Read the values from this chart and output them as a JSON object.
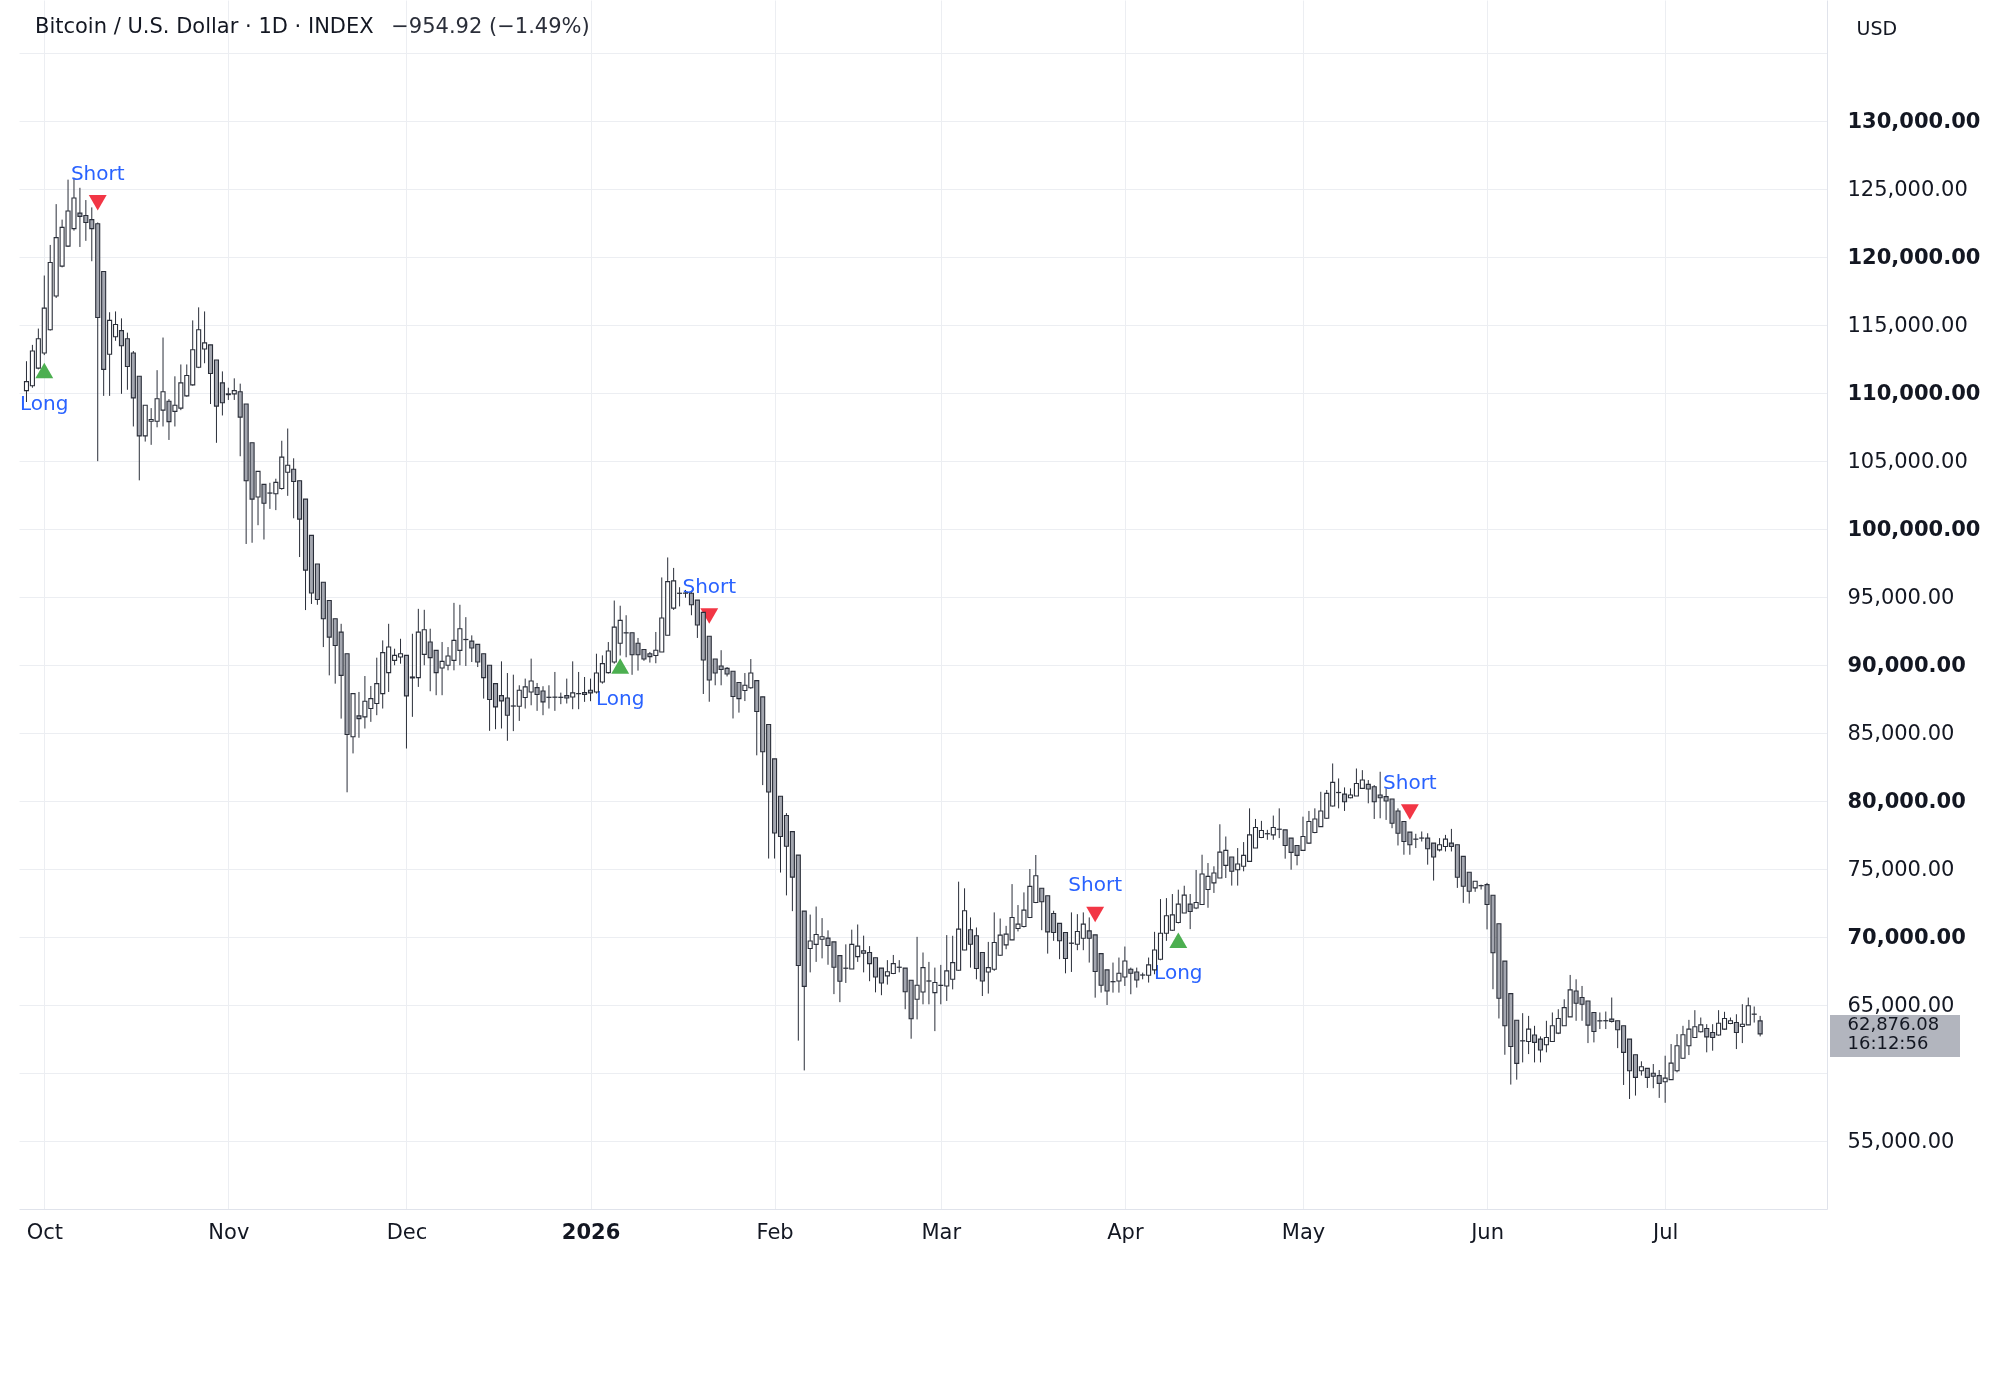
{
  "chart_data": {
    "type": "candlestick",
    "title": "Bitcoin / U.S. Dollar · 1D · INDEX",
    "subtitle": "−954.92 (−1.49%)",
    "ylabel": "USD",
    "color": "#2a2e39",
    "x": [
      "2025-09-28",
      "2025-09-29",
      "2025-09-30",
      "2025-10-01",
      "2025-10-02",
      "2025-10-03",
      "2025-10-04",
      "2025-10-05",
      "2025-10-06",
      "2025-10-07",
      "2025-10-08",
      "2025-10-09",
      "2025-10-10",
      "2025-10-11",
      "2025-10-12",
      "2025-10-13",
      "2025-10-14",
      "2025-10-15",
      "2025-10-16",
      "2025-10-17",
      "2025-10-18",
      "2025-10-19",
      "2025-10-20",
      "2025-10-21",
      "2025-10-22",
      "2025-10-23",
      "2025-10-24",
      "2025-10-25",
      "2025-10-26",
      "2025-10-27",
      "2025-10-28",
      "2025-10-29",
      "2025-10-30",
      "2025-10-31",
      "2025-11-01",
      "2025-11-02",
      "2025-11-03",
      "2025-11-04",
      "2025-11-05",
      "2025-11-06",
      "2025-11-07",
      "2025-11-08",
      "2025-11-09",
      "2025-11-10",
      "2025-11-11",
      "2025-11-12",
      "2025-11-13",
      "2025-11-14",
      "2025-11-15",
      "2025-11-16",
      "2025-11-17",
      "2025-11-18",
      "2025-11-19",
      "2025-11-20",
      "2025-11-21",
      "2025-11-22",
      "2025-11-23",
      "2025-11-24",
      "2025-11-25",
      "2025-11-26",
      "2025-11-27",
      "2025-11-28",
      "2025-11-29",
      "2025-11-30",
      "2025-12-01",
      "2025-12-02",
      "2025-12-03",
      "2025-12-04",
      "2025-12-05",
      "2025-12-06",
      "2025-12-07",
      "2025-12-08",
      "2025-12-09",
      "2025-12-10",
      "2025-12-11",
      "2025-12-12",
      "2025-12-13",
      "2025-12-14",
      "2025-12-15",
      "2025-12-16",
      "2025-12-17",
      "2025-12-18",
      "2025-12-19",
      "2025-12-20",
      "2025-12-21",
      "2025-12-22",
      "2025-12-23",
      "2025-12-24",
      "2025-12-25",
      "2025-12-26",
      "2025-12-27",
      "2025-12-28",
      "2025-12-29",
      "2025-12-30",
      "2025-12-31",
      "2026-01-01",
      "2026-01-02",
      "2026-01-03",
      "2026-01-04",
      "2026-01-05",
      "2026-01-06",
      "2026-01-07",
      "2026-01-08",
      "2026-01-09",
      "2026-01-10",
      "2026-01-11",
      "2026-01-12",
      "2026-01-13",
      "2026-01-14",
      "2026-01-15",
      "2026-01-16",
      "2026-01-17",
      "2026-01-18",
      "2026-01-19",
      "2026-01-20",
      "2026-01-21",
      "2026-01-22",
      "2026-01-23",
      "2026-01-24",
      "2026-01-25",
      "2026-01-26",
      "2026-01-27",
      "2026-01-28",
      "2026-01-29",
      "2026-01-30",
      "2026-01-31",
      "2026-02-01",
      "2026-02-02",
      "2026-02-03",
      "2026-02-04",
      "2026-02-05",
      "2026-02-06",
      "2026-02-07",
      "2026-02-08",
      "2026-02-09",
      "2026-02-10",
      "2026-02-11",
      "2026-02-12",
      "2026-02-13",
      "2026-02-14",
      "2026-02-15",
      "2026-02-16",
      "2026-02-17",
      "2026-02-18",
      "2026-02-19",
      "2026-02-20",
      "2026-02-21",
      "2026-02-22",
      "2026-02-23",
      "2026-02-24",
      "2026-02-25",
      "2026-02-26",
      "2026-02-27",
      "2026-02-28",
      "2026-03-01",
      "2026-03-02",
      "2026-03-03",
      "2026-03-04",
      "2026-03-05",
      "2026-03-06",
      "2026-03-07",
      "2026-03-08",
      "2026-03-09",
      "2026-03-10",
      "2026-03-11",
      "2026-03-12",
      "2026-03-13",
      "2026-03-14",
      "2026-03-15",
      "2026-03-16",
      "2026-03-17",
      "2026-03-18",
      "2026-03-19",
      "2026-03-20",
      "2026-03-21",
      "2026-03-22",
      "2026-03-23",
      "2026-03-24",
      "2026-03-25",
      "2026-03-26",
      "2026-03-27",
      "2026-03-28",
      "2026-03-29",
      "2026-03-30",
      "2026-03-31",
      "2026-04-01",
      "2026-04-02",
      "2026-04-03",
      "2026-04-04",
      "2026-04-05",
      "2026-04-06",
      "2026-04-07",
      "2026-04-08",
      "2026-04-09",
      "2026-04-10",
      "2026-04-11",
      "2026-04-12",
      "2026-04-13",
      "2026-04-14",
      "2026-04-15",
      "2026-04-16",
      "2026-04-17",
      "2026-04-18",
      "2026-04-19",
      "2026-04-20",
      "2026-04-21",
      "2026-04-22",
      "2026-04-23",
      "2026-04-24",
      "2026-04-25",
      "2026-04-26",
      "2026-04-27",
      "2026-04-28",
      "2026-04-29",
      "2026-04-30",
      "2026-05-01",
      "2026-05-02",
      "2026-05-03",
      "2026-05-04",
      "2026-05-05",
      "2026-05-06",
      "2026-05-07",
      "2026-05-08",
      "2026-05-09",
      "2026-05-10",
      "2026-05-11",
      "2026-05-12",
      "2026-05-13",
      "2026-05-14",
      "2026-05-15",
      "2026-05-16",
      "2026-05-17",
      "2026-05-18",
      "2026-05-19",
      "2026-05-20",
      "2026-05-21",
      "2026-05-22",
      "2026-05-23",
      "2026-05-24",
      "2026-05-25",
      "2026-05-26",
      "2026-05-27",
      "2026-05-28",
      "2026-05-29",
      "2026-05-30",
      "2026-05-31",
      "2026-06-01",
      "2026-06-02",
      "2026-06-03",
      "2026-06-04",
      "2026-06-05",
      "2026-06-06",
      "2026-06-07",
      "2026-06-08",
      "2026-06-09",
      "2026-06-10",
      "2026-06-11",
      "2026-06-12",
      "2026-06-13",
      "2026-06-14",
      "2026-06-15",
      "2026-06-16",
      "2026-06-17",
      "2026-06-18",
      "2026-06-19",
      "2026-06-20",
      "2026-06-21",
      "2026-06-22",
      "2026-06-23",
      "2026-06-24",
      "2026-06-25",
      "2026-06-26",
      "2026-06-27",
      "2026-06-28",
      "2026-06-29",
      "2026-06-30",
      "2026-07-01",
      "2026-07-02",
      "2026-07-03",
      "2026-07-04",
      "2026-07-05",
      "2026-07-06",
      "2026-07-07",
      "2026-07-08",
      "2026-07-09",
      "2026-07-10",
      "2026-07-11",
      "2026-07-12",
      "2026-07-13",
      "2026-07-14",
      "2026-07-15",
      "2026-07-16",
      "2026-07-17"
    ],
    "ohlc": [
      [
        110180,
        112340,
        109340,
        110840
      ],
      [
        110540,
        113540,
        110390,
        113090
      ],
      [
        111830,
        114740,
        111740,
        113990
      ],
      [
        112940,
        118640,
        112790,
        116240
      ],
      [
        114650,
        120890,
        114590,
        119600
      ],
      [
        117140,
        123890,
        116990,
        121430
      ],
      [
        119330,
        122750,
        119240,
        122180
      ],
      [
        120800,
        125690,
        120740,
        123380
      ],
      [
        122090,
        125840,
        121940,
        124340
      ],
      [
        123230,
        125090,
        120740,
        122990
      ],
      [
        123050,
        124190,
        121190,
        122540
      ],
      [
        122750,
        123650,
        119690,
        122090
      ],
      [
        122450,
        122540,
        104990,
        115550
      ],
      [
        118940,
        118940,
        109790,
        111740
      ],
      [
        112850,
        115940,
        109790,
        115340
      ],
      [
        114140,
        116000,
        113840,
        115040
      ],
      [
        114590,
        115490,
        109940,
        113480
      ],
      [
        113990,
        114440,
        110240,
        111950
      ],
      [
        112940,
        113090,
        107540,
        109640
      ],
      [
        111230,
        111230,
        103580,
        106850
      ],
      [
        106850,
        109100,
        106430,
        109100
      ],
      [
        107930,
        108890,
        106190,
        108050
      ],
      [
        107930,
        111680,
        107480,
        109580
      ],
      [
        108740,
        114080,
        107540,
        110090
      ],
      [
        109400,
        109550,
        106550,
        107900
      ],
      [
        108650,
        111230,
        107540,
        109100
      ],
      [
        108890,
        112100,
        108740,
        110750
      ],
      [
        109790,
        112100,
        109730,
        111290
      ],
      [
        110600,
        115340,
        110540,
        113180
      ],
      [
        111890,
        116300,
        111830,
        114650
      ],
      [
        113240,
        116000,
        112190,
        113690
      ],
      [
        113540,
        113540,
        109190,
        111440
      ],
      [
        112430,
        112430,
        106340,
        109040
      ],
      [
        110750,
        111590,
        108350,
        109280
      ],
      [
        109940,
        110390,
        109490,
        109880
      ],
      [
        109940,
        111080,
        109490,
        110180
      ],
      [
        110090,
        110690,
        105350,
        108230
      ],
      [
        109190,
        109190,
        98900,
        103550
      ],
      [
        106340,
        106340,
        98990,
        102200
      ],
      [
        102350,
        104240,
        100280,
        104240
      ],
      [
        103280,
        103280,
        99230,
        101900
      ],
      [
        102650,
        103400,
        101480,
        102640
      ],
      [
        102590,
        103700,
        101390,
        103430
      ],
      [
        102980,
        106490,
        102890,
        105290
      ],
      [
        104180,
        107390,
        102440,
        104690
      ],
      [
        104390,
        105200,
        100790,
        103490
      ],
      [
        103550,
        103550,
        97940,
        100730
      ],
      [
        102200,
        102200,
        94040,
        96980
      ],
      [
        99530,
        99530,
        94490,
        95300
      ],
      [
        97430,
        97430,
        94430,
        94820
      ],
      [
        96090,
        96090,
        91320,
        93400
      ],
      [
        94740,
        94740,
        89240,
        92050
      ],
      [
        93400,
        93400,
        88630,
        91440
      ],
      [
        92420,
        93030,
        86060,
        89240
      ],
      [
        90830,
        90830,
        80640,
        84890
      ],
      [
        84720,
        87900,
        83500,
        87900
      ],
      [
        86260,
        88020,
        84650,
        86060
      ],
      [
        86190,
        89190,
        85330,
        87340
      ],
      [
        86800,
        88460,
        85820,
        87530
      ],
      [
        87170,
        90540,
        86310,
        88630
      ],
      [
        87900,
        91810,
        86800,
        90910
      ],
      [
        89440,
        93030,
        88020,
        91320
      ],
      [
        90340,
        91200,
        89980,
        90710
      ],
      [
        90590,
        91930,
        90100,
        90830
      ],
      [
        90710,
        90710,
        83860,
        87730
      ],
      [
        89050,
        92300,
        86190,
        89120
      ],
      [
        89070,
        94130,
        88390,
        92420
      ],
      [
        90780,
        94060,
        89980,
        92590
      ],
      [
        91690,
        92670,
        88070,
        90540
      ],
      [
        91080,
        91080,
        87780,
        89440
      ],
      [
        89780,
        91690,
        87780,
        90270
      ],
      [
        89980,
        91320,
        89610,
        90660
      ],
      [
        90340,
        94570,
        89610,
        91810
      ],
      [
        91080,
        94430,
        89980,
        92670
      ],
      [
        91880,
        93520,
        89930,
        91870
      ],
      [
        91760,
        92180,
        90220,
        91250
      ],
      [
        91520,
        91520,
        89850,
        90220
      ],
      [
        90830,
        90830,
        87530,
        89070
      ],
      [
        89980,
        89980,
        85160,
        87460
      ],
      [
        88630,
        88630,
        85280,
        86920
      ],
      [
        87750,
        90270,
        85330,
        87360
      ],
      [
        87580,
        89410,
        84430,
        86310
      ],
      [
        86990,
        89290,
        85140,
        86980
      ],
      [
        86970,
        88510,
        85890,
        88140
      ],
      [
        87610,
        89000,
        86800,
        88390
      ],
      [
        88020,
        90470,
        87040,
        88830
      ],
      [
        88340,
        88680,
        86630,
        87830
      ],
      [
        88090,
        88440,
        86310,
        87290
      ],
      [
        87630,
        88510,
        86800,
        87620
      ],
      [
        87630,
        89490,
        86630,
        87640
      ],
      [
        87630,
        87970,
        87120,
        87620
      ],
      [
        87750,
        89000,
        87170,
        87580
      ],
      [
        87650,
        90270,
        86750,
        87950
      ],
      [
        87900,
        89490,
        86750,
        87890
      ],
      [
        87970,
        89120,
        87290,
        87830
      ],
      [
        88140,
        89000,
        87340,
        87950
      ],
      [
        88020,
        90830,
        87900,
        89410
      ],
      [
        88750,
        90710,
        88630,
        90100
      ],
      [
        89440,
        91690,
        89370,
        91030
      ],
      [
        90220,
        94740,
        90100,
        92790
      ],
      [
        91600,
        94360,
        90700,
        93280
      ],
      [
        92370,
        93660,
        90570,
        92360
      ],
      [
        92370,
        92370,
        89280,
        90750
      ],
      [
        91600,
        91990,
        89590,
        90750
      ],
      [
        91140,
        91140,
        90310,
        90440
      ],
      [
        90830,
        90960,
        90180,
        90620
      ],
      [
        90700,
        92430,
        90130,
        91090
      ],
      [
        90960,
        96440,
        90960,
        93460
      ],
      [
        92190,
        97910,
        92190,
        96130
      ],
      [
        94180,
        97140,
        94050,
        96190
      ],
      [
        95280,
        95720,
        94310,
        95270
      ],
      [
        95280,
        95520,
        94950,
        95290
      ],
      [
        95280,
        95460,
        93660,
        94430
      ],
      [
        94770,
        94770,
        91990,
        92940
      ],
      [
        93870,
        93870,
        87870,
        90370
      ],
      [
        92120,
        92120,
        87300,
        88900
      ],
      [
        90440,
        90440,
        88510,
        89410
      ],
      [
        89930,
        91090,
        88510,
        89670
      ],
      [
        89750,
        89850,
        89160,
        89340
      ],
      [
        89540,
        89540,
        86070,
        87690
      ],
      [
        88720,
        88720,
        86500,
        87530
      ],
      [
        88130,
        89410,
        87350,
        88510
      ],
      [
        88330,
        90440,
        88250,
        89410
      ],
      [
        88850,
        88850,
        83360,
        86580
      ],
      [
        87660,
        87660,
        81170,
        83620
      ],
      [
        85630,
        85630,
        75770,
        80660
      ],
      [
        83100,
        83100,
        75770,
        77650
      ],
      [
        80350,
        80350,
        74740,
        77390
      ],
      [
        78930,
        79110,
        73060,
        76670
      ],
      [
        77750,
        77750,
        71900,
        74400
      ],
      [
        76020,
        76020,
        62380,
        67910
      ],
      [
        71900,
        71900,
        60190,
        66370
      ],
      [
        69150,
        71650,
        67400,
        69710
      ],
      [
        69460,
        72240,
        68170,
        70180
      ],
      [
        69840,
        71390,
        68430,
        70020
      ],
      [
        69920,
        70490,
        67960,
        69380
      ],
      [
        69640,
        69640,
        65800,
        67780
      ],
      [
        68630,
        68630,
        65210,
        66750
      ],
      [
        67710,
        69460,
        66620,
        67700
      ],
      [
        67650,
        70540,
        67650,
        69460
      ],
      [
        68560,
        70920,
        68170,
        69330
      ],
      [
        68990,
        70100,
        67400,
        68810
      ],
      [
        68860,
        69330,
        66750,
        68040
      ],
      [
        68480,
        68480,
        65930,
        67060
      ],
      [
        67710,
        67710,
        65720,
        66620
      ],
      [
        67140,
        68300,
        66500,
        67450
      ],
      [
        67320,
        68680,
        67270,
        68040
      ],
      [
        67780,
        68300,
        67400,
        67770
      ],
      [
        67710,
        67710,
        64690,
        65980
      ],
      [
        66820,
        66820,
        62520,
        63990
      ],
      [
        65420,
        70010,
        63940,
        66450
      ],
      [
        65960,
        68860,
        65050,
        67750
      ],
      [
        66770,
        68170,
        65050,
        66760
      ],
      [
        65910,
        67750,
        63080,
        66650
      ],
      [
        66450,
        67950,
        65050,
        66440
      ],
      [
        66400,
        70140,
        65300,
        67510
      ],
      [
        66890,
        70090,
        66150,
        68120
      ],
      [
        67560,
        74070,
        67510,
        70580
      ],
      [
        69050,
        73580,
        69030,
        71930
      ],
      [
        70530,
        71440,
        67750,
        69470
      ],
      [
        70090,
        70700,
        66890,
        67680
      ],
      [
        68860,
        68860,
        65660,
        66770
      ],
      [
        67430,
        69640,
        65840,
        67750
      ],
      [
        67630,
        71810,
        67510,
        69600
      ],
      [
        68660,
        71360,
        68610,
        70140
      ],
      [
        69420,
        70820,
        69100,
        70210
      ],
      [
        69790,
        73890,
        69770,
        71440
      ],
      [
        70630,
        72350,
        70410,
        70950
      ],
      [
        70770,
        73280,
        70700,
        71980
      ],
      [
        71440,
        75000,
        71390,
        73720
      ],
      [
        72540,
        76030,
        72490,
        74510
      ],
      [
        73580,
        73580,
        70500,
        72590
      ],
      [
        73030,
        73030,
        68780,
        70380
      ],
      [
        71730,
        71930,
        69720,
        70330
      ],
      [
        71000,
        71000,
        68370,
        69720
      ],
      [
        70330,
        70330,
        67330,
        68420
      ],
      [
        69550,
        71810,
        67430,
        69540
      ],
      [
        69470,
        71680,
        69030,
        70410
      ],
      [
        69910,
        71810,
        69030,
        70950
      ],
      [
        70450,
        71440,
        68120,
        69910
      ],
      [
        70160,
        70160,
        65540,
        67460
      ],
      [
        68780,
        68780,
        65910,
        66450
      ],
      [
        67580,
        67580,
        65000,
        66030
      ],
      [
        66720,
        68120,
        65910,
        66710
      ],
      [
        66770,
        68490,
        65910,
        67330
      ],
      [
        67060,
        69300,
        66400,
        68240
      ],
      [
        67630,
        67750,
        65790,
        67330
      ],
      [
        67430,
        67750,
        66280,
        66840
      ],
      [
        67210,
        67380,
        66890,
        67200
      ],
      [
        67190,
        68490,
        66650,
        67950
      ],
      [
        67580,
        70380,
        67260,
        69050
      ],
      [
        68370,
        72790,
        68290,
        70280
      ],
      [
        70280,
        72860,
        69720,
        71560
      ],
      [
        70500,
        73160,
        70450,
        71630
      ],
      [
        71070,
        73480,
        71000,
        72420
      ],
      [
        71760,
        73770,
        71760,
        73080
      ],
      [
        72420,
        73160,
        70580,
        71880
      ],
      [
        72130,
        74930,
        72050,
        72540
      ],
      [
        72390,
        76050,
        72390,
        74630
      ],
      [
        73490,
        75440,
        72150,
        74460
      ],
      [
        73980,
        75200,
        73240,
        74710
      ],
      [
        74340,
        78290,
        74340,
        76240
      ],
      [
        75270,
        77390,
        74340,
        76370
      ],
      [
        75880,
        75880,
        73780,
        74830
      ],
      [
        74950,
        76540,
        73780,
        75370
      ],
      [
        75200,
        76980,
        74830,
        76000
      ],
      [
        75560,
        79460,
        75560,
        77510
      ],
      [
        76540,
        78680,
        76540,
        78050
      ],
      [
        77320,
        78540,
        77270,
        77830
      ],
      [
        77590,
        77880,
        77150,
        77600
      ],
      [
        77510,
        78930,
        77150,
        78050
      ],
      [
        77930,
        79460,
        77270,
        77920
      ],
      [
        77880,
        77880,
        75760,
        76730
      ],
      [
        77270,
        77270,
        74950,
        76220
      ],
      [
        76730,
        76730,
        75270,
        76000
      ],
      [
        76370,
        78850,
        76370,
        77390
      ],
      [
        76900,
        79270,
        76850,
        78490
      ],
      [
        77680,
        79460,
        77630,
        78680
      ],
      [
        78120,
        80680,
        78120,
        79270
      ],
      [
        78730,
        80810,
        78680,
        80560
      ],
      [
        79630,
        82760,
        79590,
        81370
      ],
      [
        80630,
        81660,
        79460,
        80620
      ],
      [
        80510,
        81000,
        79270,
        79950
      ],
      [
        80240,
        80930,
        80200,
        80440
      ],
      [
        80370,
        82390,
        80370,
        81290
      ],
      [
        80930,
        82270,
        80880,
        81540
      ],
      [
        81220,
        81540,
        79830,
        80880
      ],
      [
        81050,
        81170,
        78680,
        79950
      ],
      [
        80440,
        82150,
        78730,
        80240
      ],
      [
        80320,
        80930,
        78610,
        80000
      ],
      [
        80150,
        80150,
        78000,
        78370
      ],
      [
        79270,
        79460,
        76730,
        77630
      ],
      [
        78490,
        78490,
        76050,
        77020
      ],
      [
        77710,
        77710,
        76050,
        76780
      ],
      [
        77200,
        77590,
        76540,
        77190
      ],
      [
        77270,
        77760,
        77020,
        77280
      ],
      [
        77270,
        77630,
        75320,
        76490
      ],
      [
        76900,
        76900,
        74150,
        75880
      ],
      [
        76410,
        77270,
        76290,
        76780
      ],
      [
        76660,
        77510,
        76290,
        77200
      ],
      [
        76900,
        77950,
        76290,
        76660
      ],
      [
        76780,
        76780,
        73610,
        74390
      ],
      [
        75930,
        75930,
        72510,
        73730
      ],
      [
        74760,
        74760,
        72460,
        73370
      ],
      [
        73610,
        74100,
        73320,
        74100
      ],
      [
        73780,
        73850,
        73490,
        73770
      ],
      [
        73850,
        73980,
        70560,
        72390
      ],
      [
        73070,
        73070,
        66160,
        68840
      ],
      [
        70970,
        70970,
        64010,
        65500
      ],
      [
        68230,
        68230,
        61340,
        63470
      ],
      [
        65840,
        65840,
        59150,
        61950
      ],
      [
        63880,
        63880,
        59510,
        60710
      ],
      [
        62370,
        64400,
        60780,
        62360
      ],
      [
        62320,
        64200,
        61390,
        63230
      ],
      [
        62790,
        63470,
        60780,
        62250
      ],
      [
        62490,
        62690,
        60780,
        61690
      ],
      [
        62080,
        63840,
        61520,
        62610
      ],
      [
        62320,
        64450,
        62320,
        63470
      ],
      [
        62930,
        64690,
        62860,
        64010
      ],
      [
        63470,
        65420,
        63470,
        64810
      ],
      [
        64130,
        67210,
        64130,
        66110
      ],
      [
        66030,
        66890,
        63840,
        65130
      ],
      [
        65550,
        66400,
        63840,
        65060
      ],
      [
        65300,
        65300,
        62200,
        63520
      ],
      [
        64450,
        64450,
        62250,
        63050
      ],
      [
        63840,
        64450,
        63230,
        63830
      ],
      [
        63840,
        64520,
        63230,
        63850
      ],
      [
        63960,
        65550,
        63710,
        63790
      ],
      [
        63840,
        63840,
        61830,
        63180
      ],
      [
        63470,
        63470,
        59120,
        61520
      ],
      [
        62490,
        62490,
        58090,
        60170
      ],
      [
        61340,
        61340,
        58340,
        59680
      ],
      [
        60170,
        60860,
        59810,
        60460
      ],
      [
        60340,
        60340,
        58900,
        59680
      ],
      [
        59980,
        60660,
        58880,
        59760
      ],
      [
        59810,
        60220,
        58170,
        59240
      ],
      [
        59360,
        61270,
        57810,
        59620
      ],
      [
        59510,
        62130,
        59490,
        60730
      ],
      [
        60170,
        62860,
        60050,
        62000
      ],
      [
        61080,
        63470,
        61030,
        62810
      ],
      [
        62000,
        63910,
        61320,
        63230
      ],
      [
        62610,
        64620,
        62570,
        63400
      ],
      [
        63030,
        64080,
        62980,
        63540
      ],
      [
        63270,
        63590,
        61520,
        62660
      ],
      [
        62980,
        63590,
        61640,
        62610
      ],
      [
        62790,
        64620,
        62740,
        63660
      ],
      [
        63230,
        64500,
        63180,
        64010
      ],
      [
        63640,
        64080,
        63590,
        63840
      ],
      [
        63710,
        64320,
        61760,
        62980
      ],
      [
        63420,
        65060,
        62200,
        63590
      ],
      [
        63540,
        65550,
        63520,
        64940
      ],
      [
        64320,
        64890,
        63710,
        64330
      ],
      [
        63831,
        64200,
        62690,
        62876.08
      ]
    ],
    "colors": [
      "#ffffff",
      "#ffffff",
      "#ffffff",
      "#ffffff",
      "#ffffff",
      "#ffffff",
      "#ffffff",
      "#ffffff",
      "#ffffff",
      "#a3a6af",
      "#a3a6af",
      "#a3a6af",
      "#a3a6af",
      "#a3a6af",
      "#ffffff",
      "#ffffff",
      "#a3a6af",
      "#a3a6af",
      "#a3a6af",
      "#a3a6af",
      "#ffffff",
      "#ffffff",
      "#ffffff",
      "#ffffff",
      "#a3a6af",
      "#ffffff",
      "#ffffff",
      "#ffffff",
      "#ffffff",
      "#ffffff",
      "#ffffff",
      "#a3a6af",
      "#a3a6af",
      "#a3a6af",
      "#a3a6af",
      "#ffffff",
      "#a3a6af",
      "#a3a6af",
      "#a3a6af",
      "#ffffff",
      "#a3a6af",
      "#a3a6af",
      "#ffffff",
      "#ffffff",
      "#ffffff",
      "#a3a6af",
      "#a3a6af",
      "#a3a6af",
      "#a3a6af",
      "#a3a6af",
      "#a3a6af",
      "#a3a6af",
      "#a3a6af",
      "#a3a6af",
      "#a3a6af",
      "#ffffff",
      "#a3a6af",
      "#ffffff",
      "#ffffff",
      "#ffffff",
      "#ffffff",
      "#ffffff",
      "#ffffff",
      "#ffffff",
      "#a3a6af",
      "#ffffff",
      "#ffffff",
      "#ffffff",
      "#a3a6af",
      "#a3a6af",
      "#ffffff",
      "#ffffff",
      "#ffffff",
      "#ffffff",
      "#a3a6af",
      "#a3a6af",
      "#a3a6af",
      "#a3a6af",
      "#a3a6af",
      "#a3a6af",
      "#a3a6af",
      "#a3a6af",
      "#a3a6af",
      "#ffffff",
      "#ffffff",
      "#ffffff",
      "#a3a6af",
      "#a3a6af",
      "#a3a6af",
      "#ffffff",
      "#a3a6af",
      "#a3a6af",
      "#ffffff",
      "#a3a6af",
      "#a3a6af",
      "#a3a6af",
      "#ffffff",
      "#ffffff",
      "#ffffff",
      "#ffffff",
      "#ffffff",
      "#a3a6af",
      "#a3a6af",
      "#a3a6af",
      "#a3a6af",
      "#a3a6af",
      "#ffffff",
      "#ffffff",
      "#ffffff",
      "#ffffff",
      "#a3a6af",
      "#ffffff",
      "#a3a6af",
      "#a3a6af",
      "#a3a6af",
      "#a3a6af",
      "#a3a6af",
      "#a3a6af",
      "#a3a6af",
      "#a3a6af",
      "#a3a6af",
      "#ffffff",
      "#ffffff",
      "#a3a6af",
      "#a3a6af",
      "#a3a6af",
      "#a3a6af",
      "#a3a6af",
      "#a3a6af",
      "#a3a6af",
      "#a3a6af",
      "#a3a6af",
      "#ffffff",
      "#ffffff",
      "#ffffff",
      "#a3a6af",
      "#a3a6af",
      "#a3a6af",
      "#a3a6af",
      "#ffffff",
      "#ffffff",
      "#a3a6af",
      "#a3a6af",
      "#a3a6af",
      "#a3a6af",
      "#ffffff",
      "#ffffff",
      "#a3a6af",
      "#a3a6af",
      "#a3a6af",
      "#ffffff",
      "#ffffff",
      "#a3a6af",
      "#ffffff",
      "#a3a6af",
      "#ffffff",
      "#ffffff",
      "#ffffff",
      "#ffffff",
      "#a3a6af",
      "#a3a6af",
      "#a3a6af",
      "#ffffff",
      "#ffffff",
      "#ffffff",
      "#ffffff",
      "#ffffff",
      "#ffffff",
      "#ffffff",
      "#ffffff",
      "#ffffff",
      "#a3a6af",
      "#a3a6af",
      "#a3a6af",
      "#a3a6af",
      "#a3a6af",
      "#a3a6af",
      "#ffffff",
      "#ffffff",
      "#a3a6af",
      "#a3a6af",
      "#a3a6af",
      "#a3a6af",
      "#a3a6af",
      "#ffffff",
      "#ffffff",
      "#a3a6af",
      "#a3a6af",
      "#a3a6af",
      "#ffffff",
      "#ffffff",
      "#ffffff",
      "#ffffff",
      "#ffffff",
      "#ffffff",
      "#ffffff",
      "#a3a6af",
      "#ffffff",
      "#ffffff",
      "#ffffff",
      "#ffffff",
      "#ffffff",
      "#ffffff",
      "#a3a6af",
      "#ffffff",
      "#ffffff",
      "#ffffff",
      "#ffffff",
      "#ffffff",
      "#ffffff",
      "#ffffff",
      "#a3a6af",
      "#a3a6af",
      "#a3a6af",
      "#a3a6af",
      "#ffffff",
      "#ffffff",
      "#ffffff",
      "#ffffff",
      "#ffffff",
      "#ffffff",
      "#a3a6af",
      "#a3a6af",
      "#ffffff",
      "#ffffff",
      "#ffffff",
      "#a3a6af",
      "#a3a6af",
      "#a3a6af",
      "#a3a6af",
      "#a3a6af",
      "#a3a6af",
      "#a3a6af",
      "#a3a6af",
      "#a3a6af",
      "#ffffff",
      "#a3a6af",
      "#a3a6af",
      "#ffffff",
      "#ffffff",
      "#a3a6af",
      "#a3a6af",
      "#a3a6af",
      "#a3a6af",
      "#ffffff",
      "#a3a6af",
      "#a3a6af",
      "#a3a6af",
      "#a3a6af",
      "#a3a6af",
      "#a3a6af",
      "#a3a6af",
      "#a3a6af",
      "#ffffff",
      "#a3a6af",
      "#a3a6af",
      "#ffffff",
      "#ffffff",
      "#ffffff",
      "#ffffff",
      "#ffffff",
      "#a3a6af",
      "#a3a6af",
      "#a3a6af",
      "#a3a6af",
      "#a3a6af",
      "#ffffff",
      "#a3a6af",
      "#a3a6af",
      "#a3a6af",
      "#a3a6af",
      "#a3a6af",
      "#ffffff",
      "#a3a6af",
      "#a3a6af",
      "#a3a6af",
      "#ffffff",
      "#ffffff",
      "#ffffff",
      "#ffffff",
      "#ffffff",
      "#ffffff",
      "#ffffff",
      "#a3a6af",
      "#a3a6af",
      "#ffffff",
      "#ffffff",
      "#ffffff",
      "#a3a6af",
      "#ffffff",
      "#ffffff",
      "#ffffff",
      "#a3a6af"
    ],
    "series": [
      {
        "name": "Short",
        "type": "scatter",
        "marker": "triangle-down",
        "color": "#f23645",
        "x": [
          "2025-10-10",
          "2026-01-21",
          "2026-03-27",
          "2026-05-19"
        ],
        "values": [
          124000,
          93610,
          71660,
          79200
        ]
      },
      {
        "name": "Long",
        "type": "scatter",
        "marker": "triangle",
        "color": "#4caf50",
        "x": [
          "2025-10-01",
          "2026-01-06",
          "2026-04-10"
        ],
        "values": [
          111650,
          89930,
          69770
        ]
      }
    ],
    "xlim": [
      "2025-09-27T14:00",
      "2026-07-27T10:00"
    ],
    "xticks": [
      {
        "value": "2025-10-01",
        "label": "Oct"
      },
      {
        "value": "2025-11-01",
        "label": "Nov"
      },
      {
        "value": "2025-12-01",
        "label": "Dec"
      },
      {
        "value": "2026-01-01",
        "label": "2026"
      },
      {
        "value": "2026-02-01",
        "label": "Feb"
      },
      {
        "value": "2026-03-01",
        "label": "Mar"
      },
      {
        "value": "2026-04-01",
        "label": "Apr"
      },
      {
        "value": "2026-05-01",
        "label": "May"
      },
      {
        "value": "2026-06-01",
        "label": "Jun"
      },
      {
        "value": "2026-07-01",
        "label": "Jul"
      }
    ],
    "ylim": [
      50000,
      138900
    ],
    "yticks": [
      {
        "value": 55000,
        "label": "55,000.00"
      },
      {
        "value": 60000,
        "label": null
      },
      {
        "value": 62876.08,
        "label": "62,876.08\n16:12:56"
      },
      {
        "value": 65000,
        "label": "65,000.00"
      },
      {
        "value": 70000,
        "label": "70,000.00"
      },
      {
        "value": 75000,
        "label": "75,000.00"
      },
      {
        "value": 80000,
        "label": "80,000.00"
      },
      {
        "value": 85000,
        "label": "85,000.00"
      },
      {
        "value": 90000,
        "label": "90,000.00"
      },
      {
        "value": 95000,
        "label": "95,000.00"
      },
      {
        "value": 100000,
        "label": "100,000.00"
      },
      {
        "value": 105000,
        "label": "105,000.00"
      },
      {
        "value": 110000,
        "label": "110,000.00"
      },
      {
        "value": 115000,
        "label": "115,000.00"
      },
      {
        "value": 120000,
        "label": "120,000.00"
      },
      {
        "value": 125000,
        "label": "125,000.00"
      },
      {
        "value": 130000,
        "label": "130,000.00"
      },
      {
        "value": 135000,
        "label": null
      }
    ],
    "grid": true
  }
}
